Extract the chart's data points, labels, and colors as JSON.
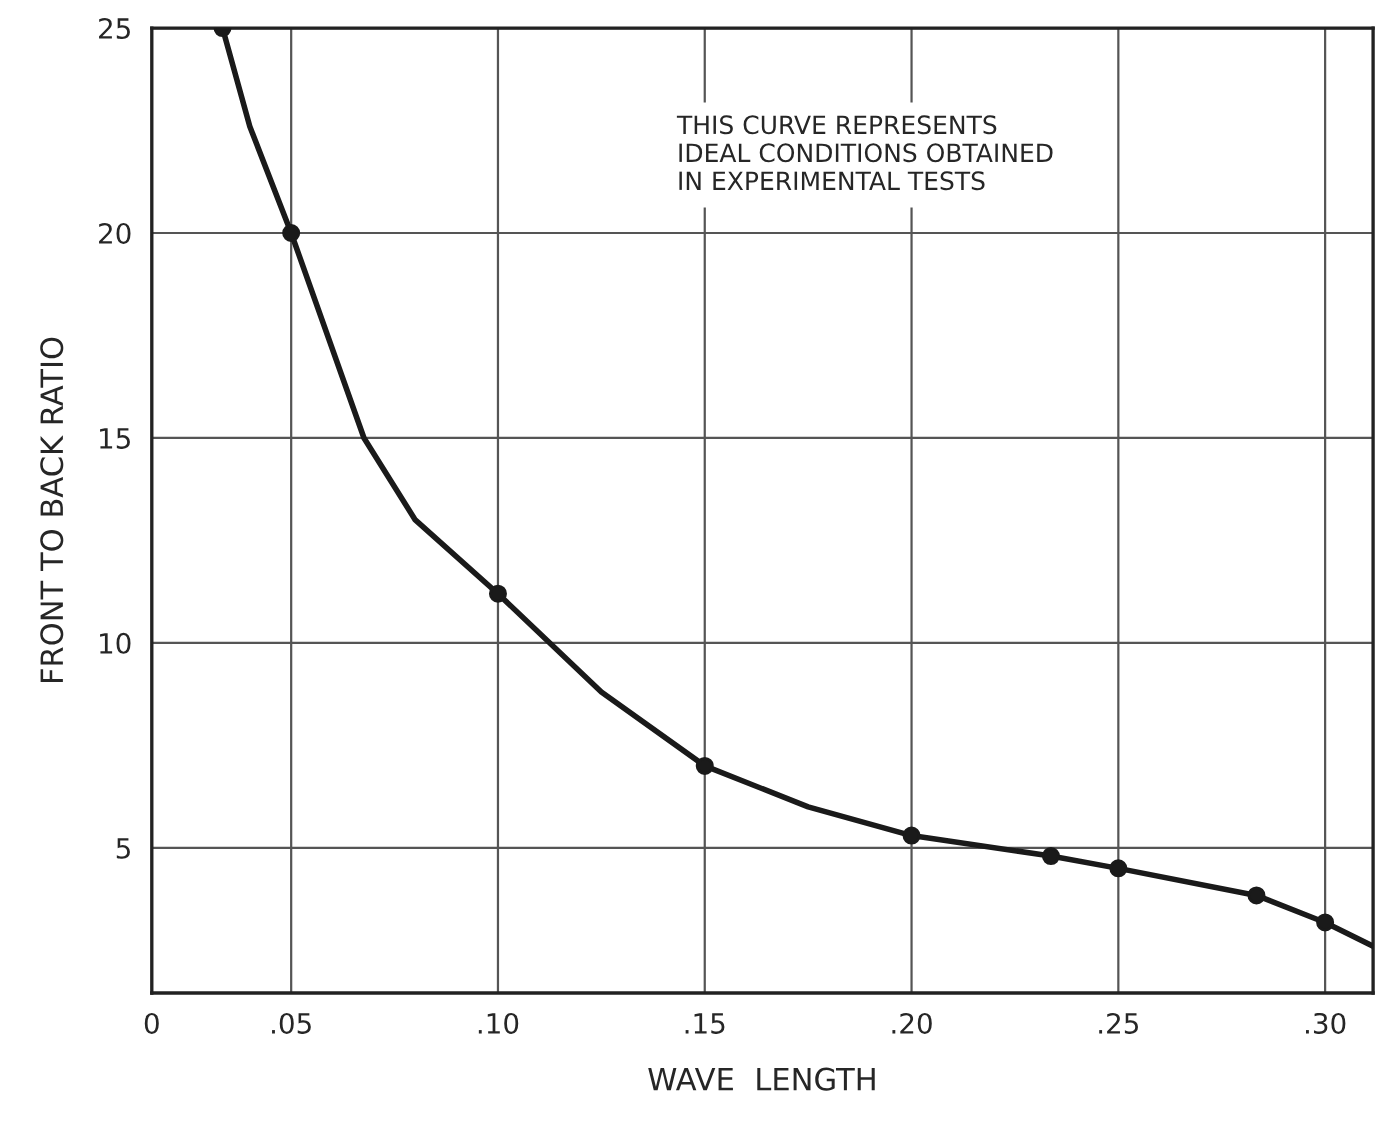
{
  "chart_data": {
    "type": "line",
    "xlabel": "WAVE  LENGTH",
    "ylabel": "FRONT TO BACK RATIO",
    "annotations": [
      "THIS CURVE REPRESENTS\nIDEAL CONDITIONS OBTAINED\nIN EXPERIMENTAL TESTS"
    ],
    "series": [
      {
        "color": "#1a1a1a",
        "marker": "none",
        "x": [
          0.0334,
          0.04,
          0.05,
          0.0676,
          0.08,
          0.1,
          0.125,
          0.15,
          0.175,
          0.2,
          0.2337,
          0.25,
          0.2834,
          0.3,
          0.3116
        ],
        "values": [
          25,
          22.6,
          20,
          15,
          13,
          11.2,
          8.8,
          7.0,
          6.0,
          5.3,
          4.8,
          4.5,
          3.84,
          3.18,
          2.6
        ]
      },
      {
        "type": "scatter",
        "color": "#1a1a1a",
        "marker": "circle",
        "x": [
          0.0334,
          0.05,
          0.1,
          0.15,
          0.2,
          0.2337,
          0.25,
          0.2834,
          0.3
        ],
        "values": [
          25,
          20,
          11.2,
          7.0,
          5.3,
          4.8,
          4.5,
          3.84,
          3.18
        ]
      }
    ],
    "xlim": [
      0.0163,
      0.3116
    ],
    "ylim": [
      1.46,
      25
    ],
    "xticks": [
      {
        "value": 0.0163,
        "label": "0"
      },
      {
        "value": 0.05,
        "label": ".05"
      },
      {
        "value": 0.1,
        "label": ".10"
      },
      {
        "value": 0.15,
        "label": ".15"
      },
      {
        "value": 0.2,
        "label": ".20"
      },
      {
        "value": 0.25,
        "label": ".25"
      },
      {
        "value": 0.3,
        "label": ".30"
      }
    ],
    "yticks": [
      5,
      10,
      15,
      20,
      25
    ],
    "grid": true
  }
}
